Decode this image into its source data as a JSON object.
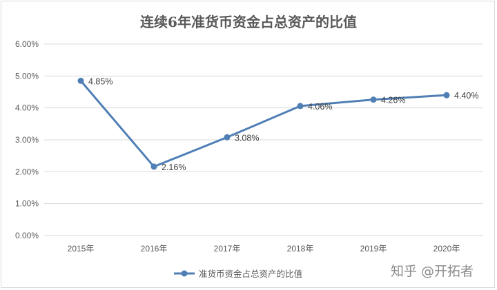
{
  "chart_data": {
    "type": "line",
    "title": "连续6年准货币资金占总资产的比值",
    "categories": [
      "2015年",
      "2016年",
      "2017年",
      "2018年",
      "2019年",
      "2020年"
    ],
    "series": [
      {
        "name": "准货币资金占总资产的比值",
        "values": [
          4.85,
          2.16,
          3.08,
          4.06,
          4.26,
          4.4
        ],
        "labels": [
          "4.85%",
          "2.16%",
          "3.08%",
          "4.06%",
          "4.26%",
          "4.40%"
        ],
        "color": "#4f7fb5"
      }
    ],
    "ylim": [
      0,
      6
    ],
    "yticks": [
      0,
      1,
      2,
      3,
      4,
      5,
      6
    ],
    "ytick_labels": [
      "0.00%",
      "1.00%",
      "2.00%",
      "3.00%",
      "4.00%",
      "5.00%",
      "6.00%"
    ],
    "xlabel": "",
    "ylabel": "",
    "grid": true,
    "legend": "bottom",
    "gridColor": "#d9d9d9"
  },
  "watermark": "知乎 @开拓者"
}
